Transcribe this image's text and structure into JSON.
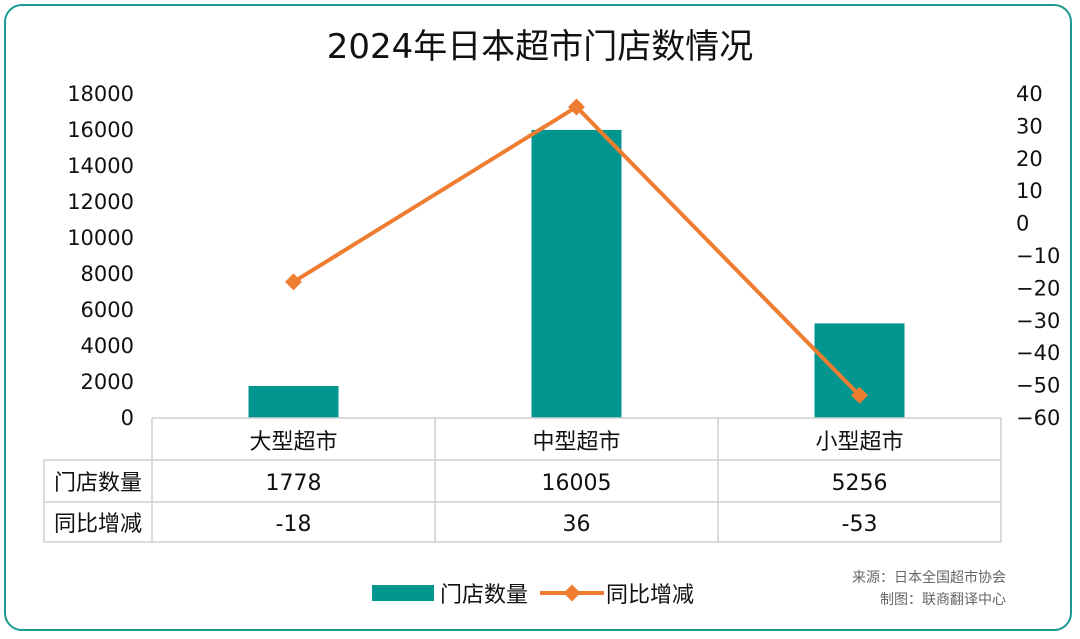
{
  "chart_data": {
    "type": "bar+line",
    "title": "2024年日本超市门店数情况",
    "categories": [
      "大型超市",
      "中型超市",
      "小型超市"
    ],
    "series": [
      {
        "name": "门店数量",
        "type": "bar",
        "axis": "left",
        "color": "#00968f",
        "values": [
          1778,
          16005,
          5256
        ]
      },
      {
        "name": "同比增减",
        "type": "line",
        "axis": "right",
        "color": "#ee7d31",
        "values": [
          -18,
          36,
          -53
        ]
      }
    ],
    "y_left": {
      "min": 0,
      "max": 18000,
      "ticks": [
        "0",
        "2000",
        "4000",
        "6000",
        "8000",
        "10000",
        "12000",
        "14000",
        "16000",
        "18000"
      ]
    },
    "y_right": {
      "min": -60,
      "max": 40,
      "ticks": [
        "-60",
        "-50",
        "-40",
        "-30",
        "-20",
        "-10",
        "0",
        "10",
        "20",
        "30",
        "40"
      ]
    },
    "table": {
      "rows": [
        {
          "label": "门店数量",
          "cells": [
            "1778",
            "16005",
            "5256"
          ]
        },
        {
          "label": "同比增减",
          "cells": [
            "-18",
            "36",
            "-53"
          ]
        }
      ]
    },
    "legend_position": "bottom",
    "source": "来源：日本全国超市协会",
    "credit": "制图：联商翻译中心"
  }
}
